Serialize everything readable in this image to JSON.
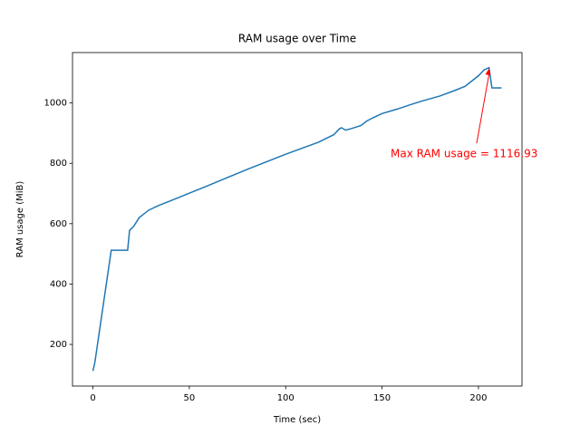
{
  "chart_data": {
    "type": "line",
    "title": "RAM usage over Time",
    "xlabel": "Time (sec)",
    "ylabel": "RAM usage (MiB)",
    "x": [
      0,
      1,
      9.5,
      18,
      19,
      21,
      24,
      29,
      34,
      40,
      60,
      80,
      100,
      117,
      125,
      128,
      129,
      131,
      134,
      139,
      142,
      145,
      150,
      158,
      165,
      170,
      180,
      188,
      193,
      197,
      200,
      203,
      205.5,
      207,
      212
    ],
    "values": [
      112,
      140,
      512,
      512,
      578,
      590,
      620,
      645,
      660,
      675,
      727,
      780,
      830,
      870,
      895,
      915,
      918,
      910,
      915,
      925,
      940,
      950,
      965,
      980,
      995,
      1005,
      1023,
      1042,
      1055,
      1075,
      1090,
      1110,
      1116.93,
      1050,
      1050
    ],
    "color": "#1f77b4",
    "annotation": {
      "text": "Max RAM usage = 1116.93",
      "color": "#ff0000"
    },
    "xlim": [
      -10.6,
      222.6
    ],
    "xticks": [
      0,
      50,
      100,
      150,
      200
    ],
    "ylim": [
      62,
      1167
    ],
    "yticks": [
      200,
      400,
      600,
      800,
      1000
    ]
  }
}
